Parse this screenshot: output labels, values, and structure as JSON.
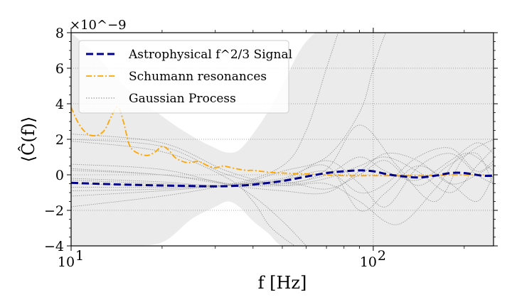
{
  "chart_data": {
    "type": "line",
    "x_scale": "log",
    "xlim": [
      10,
      250
    ],
    "ylim": [
      -4,
      8
    ],
    "y_multiplier": "×10^−9",
    "xlabel": "f [Hz]",
    "ylabel": "⟨Ĉ(f)⟩",
    "x_ticks": [
      {
        "value": 10,
        "base": "10",
        "exp": "1"
      },
      {
        "value": 100,
        "base": "10",
        "exp": "2"
      }
    ],
    "y_ticks": [
      {
        "value": -4,
        "label": "−4"
      },
      {
        "value": -2,
        "label": "−2"
      },
      {
        "value": 0,
        "label": "0"
      },
      {
        "value": 2,
        "label": "2"
      },
      {
        "value": 4,
        "label": "4"
      },
      {
        "value": 6,
        "label": "6"
      },
      {
        "value": 8,
        "label": "8"
      }
    ],
    "grid": true,
    "legend_position": "top-left",
    "legend": [
      {
        "label": "Astrophysical f^2/3 Signal",
        "style": "dashed",
        "color": "#00008b"
      },
      {
        "label": "Schumann resonances",
        "style": "dashdot",
        "color": "#ffa500"
      },
      {
        "label": "Gaussian Process",
        "style": "dotted",
        "color": "#808080"
      }
    ],
    "uncertainty_band": {
      "x": [
        10,
        12,
        15,
        20,
        25,
        30,
        33,
        36,
        40,
        45,
        50,
        60,
        80,
        100,
        150,
        250
      ],
      "upper": [
        8,
        6.8,
        5.0,
        3.3,
        2.2,
        1.5,
        1.25,
        1.4,
        2.3,
        3.6,
        5.0,
        7.5,
        9,
        9,
        9,
        9
      ],
      "lower": [
        -4,
        -4,
        -4,
        -3.8,
        -2.5,
        -1.8,
        -1.5,
        -1.8,
        -2.6,
        -3.3,
        -4,
        -4,
        -4,
        -4,
        -4,
        -4
      ]
    },
    "series": [
      {
        "name": "Astrophysical f^2/3 Signal",
        "color": "#00008b",
        "x": [
          10,
          12,
          15,
          20,
          25,
          30,
          35,
          40,
          50,
          60,
          70,
          80,
          90,
          100,
          110,
          120,
          140,
          160,
          180,
          200,
          230,
          250
        ],
        "y": [
          -0.45,
          -0.5,
          -0.55,
          -0.6,
          -0.63,
          -0.65,
          -0.62,
          -0.55,
          -0.35,
          -0.1,
          0.1,
          0.2,
          0.25,
          0.2,
          0.05,
          -0.05,
          -0.15,
          -0.05,
          0.1,
          0.1,
          -0.05,
          -0.05
        ]
      },
      {
        "name": "Schumann resonances",
        "color": "#ffa500",
        "x": [
          10,
          10.5,
          11,
          11.5,
          12,
          12.5,
          13,
          13.5,
          14,
          14.3,
          14.6,
          15,
          15.5,
          16,
          17,
          18,
          19,
          20,
          21,
          22,
          23,
          24,
          25,
          26,
          27,
          28,
          29,
          30,
          31,
          32,
          33,
          35,
          38,
          40,
          45,
          50,
          60,
          70,
          80,
          100,
          120,
          150,
          180,
          200,
          250
        ],
        "y": [
          3.8,
          3.0,
          2.5,
          2.25,
          2.2,
          2.3,
          2.6,
          3.2,
          3.7,
          3.8,
          3.5,
          2.8,
          1.8,
          1.4,
          1.15,
          1.1,
          1.3,
          1.6,
          1.4,
          1.0,
          0.8,
          0.7,
          0.7,
          0.75,
          0.7,
          0.55,
          0.45,
          0.4,
          0.45,
          0.5,
          0.45,
          0.35,
          0.25,
          0.25,
          0.15,
          0.1,
          0.05,
          0.0,
          -0.05,
          -0.05,
          -0.05,
          -0.05,
          0.0,
          0.0,
          0.0
        ]
      }
    ],
    "gp_samples": [
      {
        "x": [
          10,
          20,
          33,
          50,
          70,
          90,
          120,
          160,
          200,
          250
        ],
        "y": [
          2.3,
          1.8,
          0.2,
          -0.5,
          0.3,
          2.8,
          0.5,
          -1.5,
          1.0,
          2.0
        ]
      },
      {
        "x": [
          10,
          20,
          33,
          50,
          70,
          90,
          120,
          160,
          200,
          250
        ],
        "y": [
          2.0,
          1.6,
          0.0,
          -0.6,
          -0.5,
          -1.5,
          -2.8,
          -0.8,
          1.2,
          0.2
        ]
      },
      {
        "x": [
          10,
          20,
          33,
          40,
          45,
          50,
          55
        ],
        "y": [
          1.9,
          1.3,
          -0.2,
          -1.5,
          -2.8,
          -3.5,
          -4.0
        ]
      },
      {
        "x": [
          10,
          20,
          33,
          40,
          50,
          60
        ],
        "y": [
          0.35,
          0.0,
          -0.5,
          -1.2,
          -2.6,
          -4.0
        ]
      },
      {
        "x": [
          10,
          20,
          33,
          50,
          70,
          90,
          110,
          140,
          180,
          220,
          250
        ],
        "y": [
          0.25,
          0.0,
          -0.5,
          -0.3,
          0.8,
          -0.5,
          -1.8,
          0.4,
          1.2,
          0.0,
          -0.5
        ]
      },
      {
        "x": [
          10,
          20,
          33,
          50,
          70,
          90,
          110,
          140,
          180,
          220,
          250
        ],
        "y": [
          -0.3,
          -0.5,
          -0.6,
          -0.6,
          -0.2,
          0.5,
          1.0,
          0.2,
          -1.0,
          0.5,
          1.5
        ]
      },
      {
        "x": [
          10,
          20,
          33,
          50,
          70,
          90,
          110,
          140,
          180,
          220,
          250
        ],
        "y": [
          -0.7,
          -0.7,
          -0.6,
          -0.3,
          0.2,
          -1.0,
          -0.5,
          1.0,
          1.5,
          0.2,
          0.8
        ]
      },
      {
        "x": [
          10,
          20,
          33,
          50,
          70,
          90,
          110,
          140,
          180,
          220,
          250
        ],
        "y": [
          -1.2,
          -0.9,
          -0.6,
          -0.4,
          -0.8,
          0.0,
          0.8,
          -0.6,
          0.6,
          1.2,
          -0.6
        ]
      },
      {
        "x": [
          10,
          20,
          33,
          50,
          70,
          90,
          110,
          140,
          180,
          220,
          250
        ],
        "y": [
          -1.8,
          -1.2,
          -0.6,
          -0.2,
          0.5,
          -2.0,
          -1.0,
          0.5,
          -0.5,
          -1.5,
          0.0
        ]
      },
      {
        "x": [
          10,
          20,
          33,
          50,
          70,
          90,
          110,
          140,
          180,
          220,
          250
        ],
        "y": [
          -0.9,
          -0.8,
          -0.6,
          -0.5,
          0.0,
          1.0,
          0.2,
          -0.3,
          0.8,
          1.8,
          1.2
        ]
      },
      {
        "x": [
          10,
          20,
          33,
          50,
          60,
          70,
          80
        ],
        "y": [
          -0.5,
          -0.6,
          -0.55,
          0.5,
          2.5,
          6.0,
          9.0
        ]
      },
      {
        "x": [
          10,
          20,
          33,
          50,
          70,
          90,
          100,
          110,
          120
        ],
        "y": [
          -0.2,
          -0.4,
          -0.6,
          0.2,
          1.0,
          3.5,
          6.0,
          8.0,
          9.0
        ]
      },
      {
        "x": [
          10,
          20,
          33,
          50,
          70,
          90,
          110,
          140,
          180,
          220,
          250
        ],
        "y": [
          0.6,
          0.3,
          -0.55,
          -0.9,
          -1.0,
          0.2,
          1.2,
          0.8,
          -0.5,
          0.0,
          0.6
        ]
      }
    ]
  }
}
